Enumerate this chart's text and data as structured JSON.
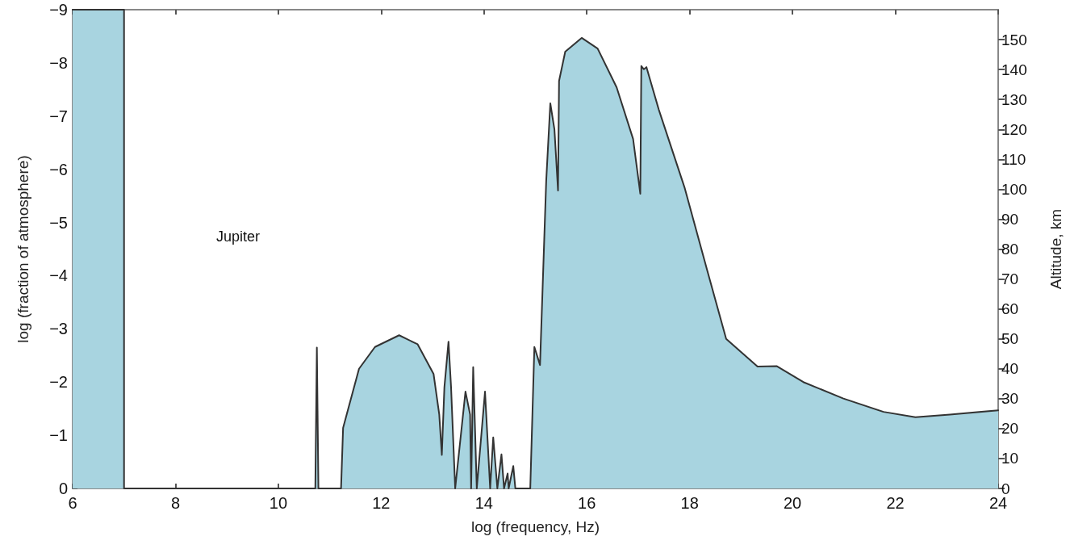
{
  "chart_data": {
    "type": "area",
    "xlabel": "log (frequency, Hz)",
    "ylabel": "log (fraction of atmosphere)",
    "y2label": "Altitude, km",
    "annotations": [
      "Jupiter"
    ],
    "x": [
      6,
      7,
      7,
      10.72,
      10.75,
      10.78,
      11.22,
      11.26,
      11.57,
      11.88,
      12.35,
      12.71,
      13.02,
      13.13,
      13.18,
      13.23,
      13.31,
      13.36,
      13.44,
      13.64,
      13.73,
      13.75,
      13.79,
      13.86,
      14.02,
      14.12,
      14.18,
      14.26,
      14.34,
      14.39,
      14.46,
      14.48,
      14.57,
      14.61,
      14.9,
      14.98,
      15.09,
      15.21,
      15.29,
      15.37,
      15.44,
      15.46,
      15.58,
      15.9,
      16.21,
      16.58,
      16.9,
      17.04,
      17.06,
      17.11,
      17.16,
      17.4,
      17.9,
      18.33,
      18.71,
      19.32,
      19.69,
      20.21,
      20.99,
      21.77,
      22.39,
      23.06,
      24
    ],
    "series": [
      {
        "color": "#a8d4e0",
        "values": [
          -9,
          -9,
          0,
          0,
          -2.65,
          0,
          0,
          -1.14,
          -2.25,
          -2.66,
          -2.88,
          -2.71,
          -2.15,
          -1.39,
          -0.63,
          -1.9,
          -2.76,
          -1.9,
          0,
          -1.82,
          -1.39,
          0,
          -2.28,
          0,
          -1.82,
          0,
          -0.96,
          0,
          -0.64,
          0,
          -0.28,
          0,
          -0.42,
          0,
          0,
          -2.66,
          -2.32,
          -5.78,
          -7.24,
          -6.75,
          -5.6,
          -7.66,
          -8.21,
          -8.47,
          -8.27,
          -7.54,
          -6.57,
          -5.54,
          -7.94,
          -7.88,
          -7.92,
          -7.12,
          -5.66,
          -4.14,
          -2.81,
          -2.29,
          -2.3,
          -2,
          -1.69,
          -1.44,
          -1.34,
          -1.39,
          -1.47
        ]
      }
    ],
    "xlim": [
      6,
      24
    ],
    "xticks": [
      6,
      8,
      10,
      12,
      14,
      16,
      18,
      20,
      22,
      24
    ],
    "ylim": [
      0,
      -9
    ],
    "yticks": [
      0,
      -1,
      -2,
      -3,
      -4,
      -5,
      -6,
      -7,
      -8,
      -9
    ],
    "y2lim": [
      0,
      160
    ],
    "y2ticks": [
      0,
      10,
      20,
      30,
      40,
      50,
      60,
      70,
      80,
      90,
      100,
      110,
      120,
      130,
      140,
      150
    ],
    "grid": false,
    "marker": "none",
    "line_style": "solid"
  }
}
